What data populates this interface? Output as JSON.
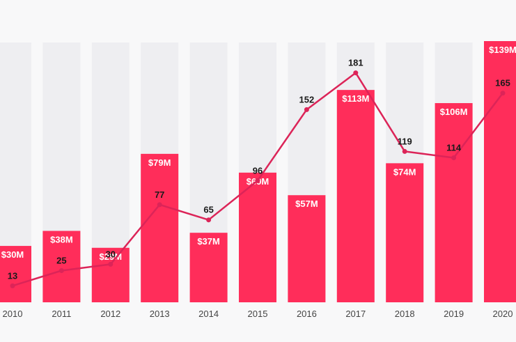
{
  "chart_data": {
    "type": "bar",
    "categories": [
      "2010",
      "2011",
      "2012",
      "2013",
      "2014",
      "2015",
      "2016",
      "2017",
      "2018",
      "2019",
      "2020"
    ],
    "series": [
      {
        "type": "bar",
        "values": [
          30,
          38,
          29,
          79,
          37,
          69,
          57,
          113,
          74,
          106,
          139
        ],
        "labels": [
          "$30M",
          "$38M",
          "$29M",
          "$79M",
          "$37M",
          "$69M",
          "$57M",
          "$113M",
          "$74M",
          "$106M",
          "$139M"
        ]
      },
      {
        "type": "line",
        "values": [
          13,
          25,
          30,
          77,
          65,
          96,
          152,
          181,
          119,
          114,
          165
        ],
        "labels": [
          "13",
          "25",
          "30",
          "77",
          "65",
          "96",
          "152",
          "181",
          "119",
          "114",
          "165"
        ]
      }
    ],
    "bar_ylim": [
      0,
      139
    ],
    "line_ylim": [
      0,
      210
    ],
    "grid": false,
    "colors": {
      "bar": "#ff2d5a",
      "bar_background": "#eeeef1",
      "line": "#dc2458",
      "bar_label": "#ffffff",
      "line_label": "#1a1a1a",
      "axis_label": "#444444",
      "page_background": "#f8f8f9"
    }
  }
}
